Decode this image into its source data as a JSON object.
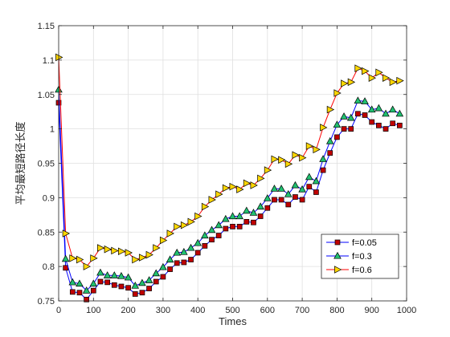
{
  "chart_data": {
    "type": "line",
    "xlabel": "Times",
    "ylabel": "平均最短路径长度",
    "xlim": [
      0,
      1000
    ],
    "ylim": [
      0.75,
      1.15
    ],
    "xticks": [
      "0",
      "100",
      "200",
      "300",
      "400",
      "500",
      "600",
      "700",
      "800",
      "900",
      "1000"
    ],
    "yticks": [
      "0.75",
      "0.8",
      "0.85",
      "0.9",
      "0.95",
      "1",
      "1.05",
      "1.1",
      "1.15"
    ],
    "grid": true,
    "legend_position": "bottom-right",
    "x": [
      0,
      20,
      40,
      60,
      80,
      100,
      120,
      140,
      160,
      180,
      200,
      220,
      240,
      260,
      280,
      300,
      320,
      340,
      360,
      380,
      400,
      420,
      440,
      460,
      480,
      500,
      520,
      540,
      560,
      580,
      600,
      620,
      640,
      660,
      680,
      700,
      720,
      740,
      760,
      780,
      800,
      820,
      840,
      860,
      880,
      900,
      920,
      940,
      960,
      980
    ],
    "series": [
      {
        "name": "f=0.05",
        "color": "#0000ff",
        "marker": "square",
        "marker_color": "#c00000",
        "values": [
          1.038,
          0.798,
          0.763,
          0.762,
          0.752,
          0.765,
          0.778,
          0.777,
          0.773,
          0.771,
          0.769,
          0.76,
          0.762,
          0.768,
          0.778,
          0.785,
          0.796,
          0.805,
          0.806,
          0.81,
          0.82,
          0.83,
          0.839,
          0.845,
          0.855,
          0.858,
          0.858,
          0.865,
          0.864,
          0.873,
          0.885,
          0.897,
          0.897,
          0.89,
          0.901,
          0.897,
          0.916,
          0.908,
          0.94,
          0.965,
          0.988,
          1.0,
          1.0,
          1.022,
          1.02,
          1.01,
          1.005,
          1.0,
          1.008,
          1.005
        ]
      },
      {
        "name": "f=0.3",
        "color": "#0000ff",
        "marker": "triangle",
        "marker_color": "#20c070",
        "values": [
          1.057,
          0.811,
          0.777,
          0.775,
          0.765,
          0.775,
          0.791,
          0.787,
          0.787,
          0.786,
          0.784,
          0.772,
          0.776,
          0.78,
          0.79,
          0.799,
          0.81,
          0.82,
          0.821,
          0.827,
          0.834,
          0.845,
          0.853,
          0.86,
          0.869,
          0.873,
          0.873,
          0.881,
          0.878,
          0.887,
          0.899,
          0.913,
          0.913,
          0.905,
          0.918,
          0.912,
          0.93,
          0.924,
          0.956,
          0.982,
          1.006,
          1.018,
          1.016,
          1.041,
          1.04,
          1.028,
          1.03,
          1.022,
          1.028,
          1.022
        ]
      },
      {
        "name": "f=0.6",
        "color": "#ff0000",
        "marker": "triangle-right",
        "marker_color": "#ffd700",
        "values": [
          1.104,
          0.848,
          0.812,
          0.81,
          0.8,
          0.812,
          0.827,
          0.825,
          0.823,
          0.822,
          0.82,
          0.81,
          0.813,
          0.817,
          0.827,
          0.838,
          0.848,
          0.858,
          0.86,
          0.865,
          0.873,
          0.887,
          0.897,
          0.905,
          0.914,
          0.916,
          0.912,
          0.921,
          0.918,
          0.928,
          0.94,
          0.956,
          0.955,
          0.949,
          0.962,
          0.958,
          0.975,
          0.97,
          1.002,
          1.028,
          1.052,
          1.066,
          1.068,
          1.088,
          1.084,
          1.074,
          1.082,
          1.074,
          1.068,
          1.07
        ]
      }
    ]
  }
}
